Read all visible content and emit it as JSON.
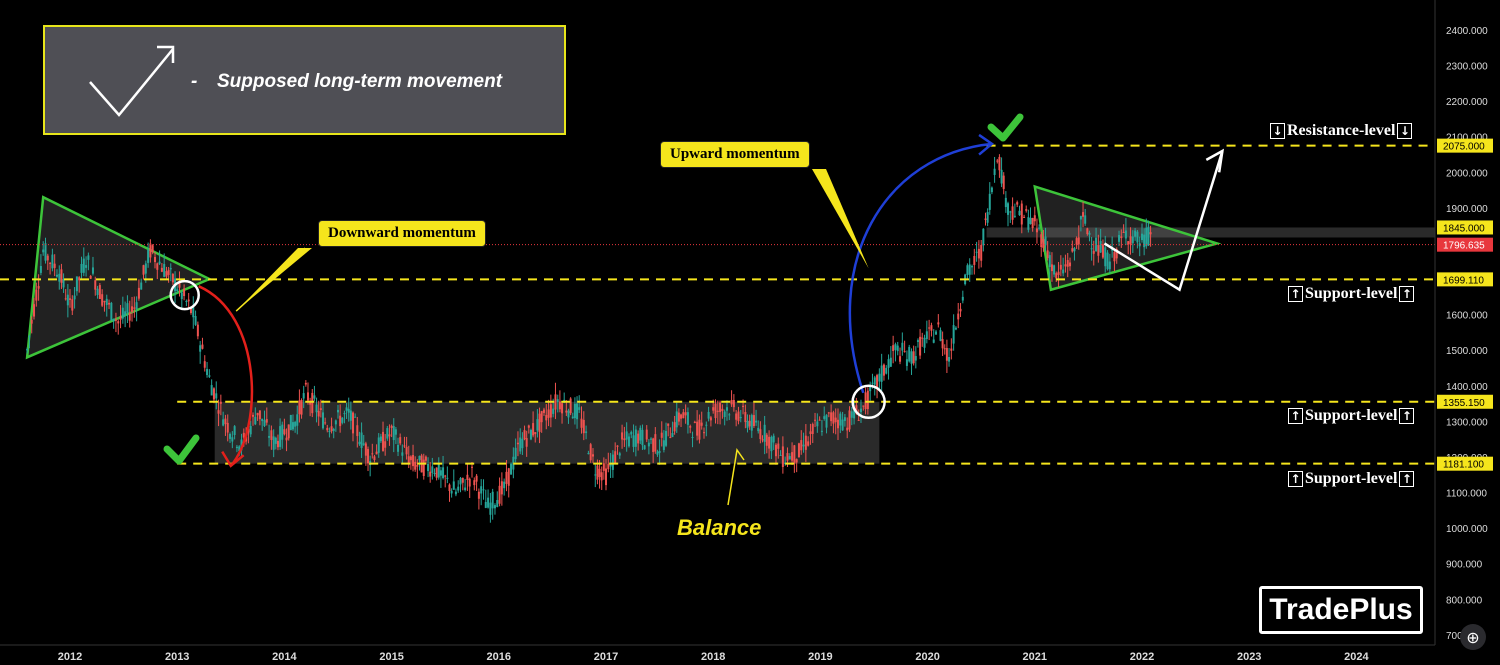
{
  "chart_data": {
    "type": "candlestick",
    "title": "",
    "xlabel": "",
    "ylabel": "",
    "x_ticks": [
      "2012",
      "2013",
      "2014",
      "2015",
      "2016",
      "2017",
      "2018",
      "2019",
      "2020",
      "2021",
      "2022",
      "2023",
      "2024"
    ],
    "y_ticks": [
      "700.000",
      "800.000",
      "900.000",
      "1000.000",
      "1100.000",
      "1200.000",
      "1300.000",
      "1400.000",
      "1500.000",
      "1600.000",
      "1700.000",
      "1800.000",
      "1900.000",
      "2000.000",
      "2100.000",
      "2200.000",
      "2300.000",
      "2400.000"
    ],
    "ylim": [
      700,
      2440
    ],
    "xlim": [
      2011.55,
      2024.9
    ],
    "price_path": [
      [
        2011.6,
        1500
      ],
      [
        2011.75,
        1780
      ],
      [
        2011.9,
        1720
      ],
      [
        2012.0,
        1620
      ],
      [
        2012.15,
        1760
      ],
      [
        2012.3,
        1650
      ],
      [
        2012.45,
        1580
      ],
      [
        2012.6,
        1620
      ],
      [
        2012.75,
        1780
      ],
      [
        2012.9,
        1720
      ],
      [
        2013.0,
        1680
      ],
      [
        2013.15,
        1600
      ],
      [
        2013.3,
        1420
      ],
      [
        2013.45,
        1300
      ],
      [
        2013.6,
        1230
      ],
      [
        2013.75,
        1330
      ],
      [
        2013.9,
        1240
      ],
      [
        2014.1,
        1300
      ],
      [
        2014.2,
        1380
      ],
      [
        2014.4,
        1290
      ],
      [
        2014.6,
        1320
      ],
      [
        2014.8,
        1200
      ],
      [
        2015.0,
        1270
      ],
      [
        2015.2,
        1180
      ],
      [
        2015.4,
        1170
      ],
      [
        2015.6,
        1100
      ],
      [
        2015.75,
        1150
      ],
      [
        2015.9,
        1060
      ],
      [
        2016.05,
        1110
      ],
      [
        2016.2,
        1240
      ],
      [
        2016.4,
        1300
      ],
      [
        2016.55,
        1360
      ],
      [
        2016.75,
        1320
      ],
      [
        2016.9,
        1170
      ],
      [
        2017.0,
        1150
      ],
      [
        2017.15,
        1240
      ],
      [
        2017.3,
        1260
      ],
      [
        2017.5,
        1230
      ],
      [
        2017.7,
        1320
      ],
      [
        2017.85,
        1270
      ],
      [
        2018.0,
        1330
      ],
      [
        2018.15,
        1340
      ],
      [
        2018.3,
        1310
      ],
      [
        2018.5,
        1260
      ],
      [
        2018.65,
        1200
      ],
      [
        2018.8,
        1210
      ],
      [
        2018.95,
        1280
      ],
      [
        2019.1,
        1310
      ],
      [
        2019.25,
        1300
      ],
      [
        2019.4,
        1340
      ],
      [
        2019.55,
        1420
      ],
      [
        2019.7,
        1500
      ],
      [
        2019.85,
        1480
      ],
      [
        2019.95,
        1520
      ],
      [
        2020.1,
        1560
      ],
      [
        2020.2,
        1480
      ],
      [
        2020.35,
        1700
      ],
      [
        2020.5,
        1780
      ],
      [
        2020.6,
        1960
      ],
      [
        2020.65,
        2060
      ],
      [
        2020.75,
        1900
      ],
      [
        2020.9,
        1880
      ],
      [
        2021.0,
        1850
      ],
      [
        2021.1,
        1800
      ],
      [
        2021.2,
        1700
      ],
      [
        2021.35,
        1760
      ],
      [
        2021.45,
        1870
      ],
      [
        2021.55,
        1800
      ],
      [
        2021.7,
        1750
      ],
      [
        2021.85,
        1830
      ],
      [
        2022.0,
        1800
      ],
      [
        2022.1,
        1840
      ]
    ],
    "levels": [
      {
        "value": 2075,
        "label": "Resistance-level",
        "tag": "2075.000"
      },
      {
        "value": 1845,
        "label": "",
        "tag": "1845.000"
      },
      {
        "value": 1796.635,
        "label": "",
        "tag": "1796.635",
        "current": true
      },
      {
        "value": 1699.11,
        "label": "Support-level",
        "tag": "1699.110"
      },
      {
        "value": 1355.15,
        "label": "Support-level",
        "tag": "1355.150"
      },
      {
        "value": 1181.1,
        "label": "Support-level",
        "tag": "1181.100"
      }
    ],
    "annotations": {
      "legend_text": "Supposed long-term movement",
      "legend_dash": "-",
      "downward": "Downward momentum",
      "upward": "Upward momentum",
      "balance": "Balance",
      "resistance_label": "Resistance-level",
      "support_label": "Support-level"
    },
    "colors": {
      "background": "#000000",
      "level_line": "#f5e51c",
      "triangle": "#3dc43a",
      "current_price": "#e8373d",
      "down_arrow": "#e3201b",
      "up_arrow": "#1f3fd6",
      "projection": "#ffffff"
    },
    "grid": false
  },
  "brand": "TradePlus",
  "zoom_icon": "magnifier-plus-icon"
}
